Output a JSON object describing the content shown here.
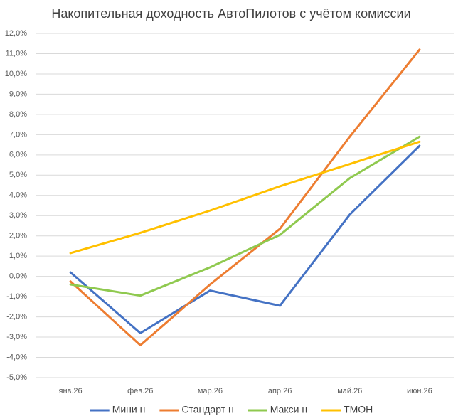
{
  "chart_data": {
    "type": "line",
    "title": "Накопительная доходность АвтоПилотов с учётом комиссии",
    "categories": [
      "янв.26",
      "фев.26",
      "мар.26",
      "апр.26",
      "май.26",
      "июн.26"
    ],
    "series": [
      {
        "name": "Мини н",
        "color": "#4472c4",
        "values": [
          0.2,
          -2.8,
          -0.7,
          -1.45,
          3.05,
          6.45
        ]
      },
      {
        "name": "Стандарт н",
        "color": "#ed7d31",
        "values": [
          -0.25,
          -3.4,
          -0.4,
          2.35,
          6.9,
          11.2
        ]
      },
      {
        "name": "Макси н",
        "color": "#8fc94f",
        "values": [
          -0.4,
          -0.95,
          0.45,
          2.05,
          4.85,
          6.9
        ]
      },
      {
        "name": "ТМОН",
        "color": "#ffc000",
        "values": [
          1.15,
          2.15,
          3.25,
          4.45,
          5.55,
          6.65
        ]
      }
    ],
    "ylim": [
      -5,
      12
    ],
    "yticks": [
      {
        "value": -5,
        "label": "-5,0%"
      },
      {
        "value": -4,
        "label": "-4,0%"
      },
      {
        "value": -3,
        "label": "-3,0%"
      },
      {
        "value": -2,
        "label": "-2,0%"
      },
      {
        "value": -1,
        "label": "-1,0%"
      },
      {
        "value": 0,
        "label": "0,0%"
      },
      {
        "value": 1,
        "label": "1,0%"
      },
      {
        "value": 2,
        "label": "2,0%"
      },
      {
        "value": 3,
        "label": "3,0%"
      },
      {
        "value": 4,
        "label": "4,0%"
      },
      {
        "value": 5,
        "label": "5,0%"
      },
      {
        "value": 6,
        "label": "6,0%"
      },
      {
        "value": 7,
        "label": "7,0%"
      },
      {
        "value": 8,
        "label": "8,0%"
      },
      {
        "value": 9,
        "label": "9,0%"
      },
      {
        "value": 10,
        "label": "10,0%"
      },
      {
        "value": 11,
        "label": "11,0%"
      },
      {
        "value": 12,
        "label": "12,0%"
      }
    ],
    "grid": true,
    "legend": "bottom"
  }
}
